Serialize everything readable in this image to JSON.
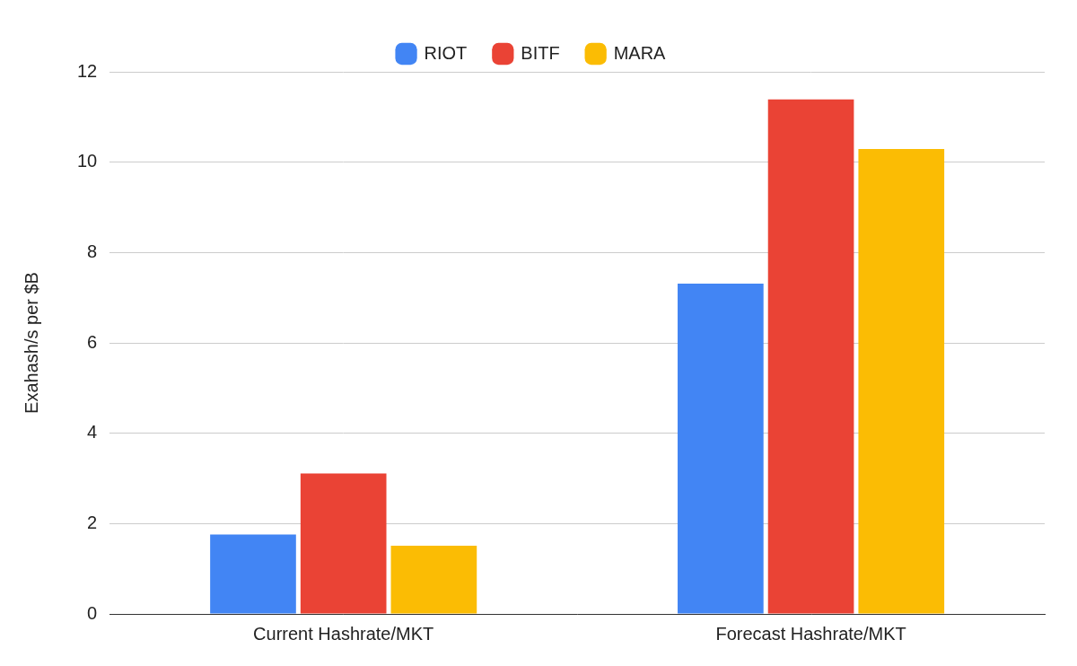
{
  "chart_data": {
    "type": "bar",
    "categories": [
      "Current Hashrate/MKT",
      "Forecast Hashrate/MKT"
    ],
    "series": [
      {
        "name": "RIOT",
        "color": "#4285f4",
        "values": [
          1.76,
          7.31
        ]
      },
      {
        "name": "BITF",
        "color": "#ea4335",
        "values": [
          3.11,
          11.39
        ]
      },
      {
        "name": "MARA",
        "color": "#fbbc04",
        "values": [
          1.51,
          10.29
        ]
      }
    ],
    "y_label": "Exahash/s per $B",
    "ylim": [
      0,
      12
    ],
    "yticks": [
      0,
      2,
      4,
      6,
      8,
      10,
      12
    ],
    "grid": true,
    "legend": "top"
  }
}
